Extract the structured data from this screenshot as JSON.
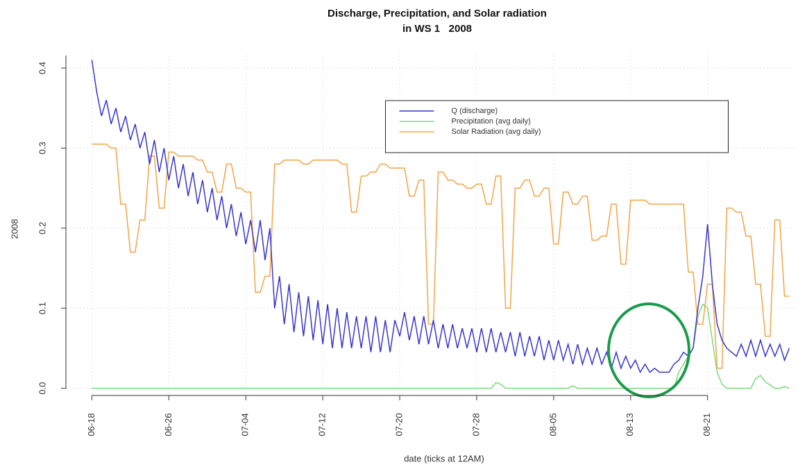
{
  "chart_data": {
    "type": "line",
    "title": "Discharge, Precipitation, and Solar radiation",
    "subtitle": "in WS 1   2008",
    "y_label": "2008",
    "x_label": "date (ticks at 12AM)",
    "grid": true,
    "legend_position": "top",
    "xlim": [
      -2.7,
      73.4
    ],
    "ylim": [
      -0.009,
      0.42
    ],
    "xticks": [
      {
        "value": 0,
        "label": "06-18"
      },
      {
        "value": 8,
        "label": "06-26"
      },
      {
        "value": 16,
        "label": "07-04"
      },
      {
        "value": 24,
        "label": "07-12"
      },
      {
        "value": 32,
        "label": "07-20"
      },
      {
        "value": 40,
        "label": "07-28"
      },
      {
        "value": 48,
        "label": "08-05"
      },
      {
        "value": 56,
        "label": "08-13"
      },
      {
        "value": 64,
        "label": "08-21"
      }
    ],
    "yticks": [
      {
        "value": 0,
        "label": "0.0"
      },
      0.1,
      0.2,
      0.3,
      0.4
    ],
    "x": [
      0,
      0.5,
      1,
      1.5,
      2,
      2.5,
      3,
      3.5,
      4,
      4.5,
      5,
      5.5,
      6,
      6.5,
      7,
      7.5,
      8,
      8.5,
      9,
      9.5,
      10,
      10.5,
      11,
      11.5,
      12,
      12.5,
      13,
      13.5,
      14,
      14.5,
      15,
      15.5,
      16,
      16.5,
      17,
      17.5,
      18,
      18.5,
      19,
      19.5,
      20,
      20.5,
      21,
      21.5,
      22,
      22.5,
      23,
      23.5,
      24,
      24.5,
      25,
      25.5,
      26,
      26.5,
      27,
      27.5,
      28,
      28.5,
      29,
      29.5,
      30,
      30.5,
      31,
      31.5,
      32,
      32.5,
      33,
      33.5,
      34,
      34.5,
      35,
      35.5,
      36,
      36.5,
      37,
      37.5,
      38,
      38.5,
      39,
      39.5,
      40,
      40.5,
      41,
      41.5,
      42,
      42.5,
      43,
      43.5,
      44,
      44.5,
      45,
      45.5,
      46,
      46.5,
      47,
      47.5,
      48,
      48.5,
      49,
      49.5,
      50,
      50.5,
      51,
      51.5,
      52,
      52.5,
      53,
      53.5,
      54,
      54.5,
      55,
      55.5,
      56,
      56.5,
      57,
      57.5,
      58,
      58.5,
      59,
      59.5,
      60,
      60.5,
      61,
      61.5,
      62,
      62.5,
      63,
      63.5,
      64,
      64.5,
      65,
      65.5,
      66,
      66.5,
      67,
      67.5,
      68,
      68.5,
      69,
      69.5,
      70,
      70.5,
      71,
      71.5,
      72,
      72.5
    ],
    "series": [
      {
        "name": "Q (discharge)",
        "color": "#3535cc",
        "values": [
          0.41,
          0.37,
          0.34,
          0.36,
          0.33,
          0.35,
          0.32,
          0.34,
          0.31,
          0.33,
          0.3,
          0.32,
          0.28,
          0.31,
          0.27,
          0.3,
          0.26,
          0.29,
          0.25,
          0.28,
          0.24,
          0.27,
          0.23,
          0.26,
          0.22,
          0.25,
          0.21,
          0.24,
          0.2,
          0.23,
          0.19,
          0.22,
          0.18,
          0.21,
          0.17,
          0.21,
          0.16,
          0.2,
          0.1,
          0.14,
          0.08,
          0.13,
          0.07,
          0.12,
          0.065,
          0.115,
          0.06,
          0.11,
          0.055,
          0.105,
          0.05,
          0.1,
          0.05,
          0.095,
          0.05,
          0.09,
          0.05,
          0.09,
          0.045,
          0.09,
          0.045,
          0.085,
          0.045,
          0.085,
          0.065,
          0.095,
          0.06,
          0.09,
          0.055,
          0.09,
          0.055,
          0.085,
          0.05,
          0.08,
          0.05,
          0.08,
          0.05,
          0.075,
          0.05,
          0.075,
          0.045,
          0.075,
          0.045,
          0.075,
          0.045,
          0.07,
          0.045,
          0.07,
          0.04,
          0.07,
          0.04,
          0.065,
          0.04,
          0.065,
          0.035,
          0.06,
          0.035,
          0.06,
          0.035,
          0.055,
          0.03,
          0.055,
          0.03,
          0.05,
          0.03,
          0.05,
          0.03,
          0.045,
          0.025,
          0.045,
          0.025,
          0.04,
          0.025,
          0.035,
          0.02,
          0.03,
          0.02,
          0.025,
          0.02,
          0.02,
          0.02,
          0.03,
          0.035,
          0.045,
          0.04,
          0.05,
          0.1,
          0.14,
          0.205,
          0.13,
          0.08,
          0.06,
          0.05,
          0.045,
          0.04,
          0.055,
          0.04,
          0.06,
          0.04,
          0.06,
          0.04,
          0.055,
          0.04,
          0.055,
          0.035,
          0.05
        ]
      },
      {
        "name": "Precipitation (avg daily)",
        "color": "#77dd77",
        "values": [
          0,
          0,
          0,
          0,
          0,
          0,
          0,
          0,
          0,
          0,
          0,
          0,
          0,
          0,
          0,
          0,
          0,
          0,
          0,
          0,
          0,
          0,
          0,
          0,
          0,
          0,
          0,
          0,
          0,
          0,
          0,
          0,
          0,
          0,
          0,
          0,
          0,
          0,
          0,
          0,
          0,
          0,
          0,
          0,
          0,
          0,
          0,
          0,
          0,
          0,
          0,
          0,
          0,
          0,
          0,
          0,
          0,
          0,
          0,
          0,
          0,
          0,
          0,
          0,
          0,
          0,
          0,
          0,
          0,
          0,
          0,
          0,
          0,
          0,
          0,
          0,
          0,
          0,
          0,
          0,
          0,
          0,
          0,
          0,
          0.007,
          0.005,
          0,
          0,
          0,
          0,
          0,
          0,
          0,
          0,
          0,
          0,
          0,
          0,
          0,
          0,
          0.003,
          0,
          0,
          0,
          0,
          0,
          0,
          0,
          0,
          0,
          0,
          0,
          0,
          0,
          0,
          0,
          0,
          0,
          0,
          0,
          0,
          0,
          0.02,
          0.03,
          0.04,
          0.05,
          0.09,
          0.105,
          0.1,
          0.06,
          0.02,
          0.005,
          0,
          0,
          0,
          0,
          0,
          0,
          0.012,
          0.016,
          0.008,
          0.004,
          0,
          0,
          0.002,
          0
        ]
      },
      {
        "name": "Solar Radiation (avg daily)",
        "color": "#f2a445",
        "values": [
          0.305,
          0.305,
          0.305,
          0.305,
          0.3,
          0.3,
          0.23,
          0.23,
          0.17,
          0.17,
          0.21,
          0.21,
          0.29,
          0.29,
          0.225,
          0.225,
          0.295,
          0.295,
          0.29,
          0.29,
          0.29,
          0.29,
          0.285,
          0.285,
          0.27,
          0.27,
          0.245,
          0.245,
          0.28,
          0.28,
          0.25,
          0.25,
          0.245,
          0.245,
          0.12,
          0.12,
          0.14,
          0.14,
          0.28,
          0.28,
          0.285,
          0.285,
          0.285,
          0.285,
          0.28,
          0.28,
          0.285,
          0.285,
          0.285,
          0.285,
          0.285,
          0.285,
          0.28,
          0.28,
          0.22,
          0.22,
          0.265,
          0.265,
          0.27,
          0.27,
          0.28,
          0.28,
          0.275,
          0.275,
          0.275,
          0.275,
          0.24,
          0.24,
          0.26,
          0.26,
          0.08,
          0.08,
          0.27,
          0.27,
          0.26,
          0.26,
          0.255,
          0.255,
          0.25,
          0.25,
          0.255,
          0.255,
          0.23,
          0.23,
          0.265,
          0.265,
          0.1,
          0.1,
          0.25,
          0.25,
          0.26,
          0.26,
          0.24,
          0.24,
          0.25,
          0.25,
          0.18,
          0.18,
          0.245,
          0.245,
          0.23,
          0.23,
          0.24,
          0.24,
          0.185,
          0.185,
          0.19,
          0.19,
          0.23,
          0.23,
          0.155,
          0.155,
          0.235,
          0.235,
          0.235,
          0.235,
          0.23,
          0.23,
          0.23,
          0.23,
          0.23,
          0.23,
          0.23,
          0.23,
          0.145,
          0.145,
          0.08,
          0.08,
          0.13,
          0.13,
          0.025,
          0.025,
          0.225,
          0.225,
          0.22,
          0.22,
          0.19,
          0.19,
          0.13,
          0.13,
          0.065,
          0.065,
          0.21,
          0.21,
          0.115,
          0.115
        ]
      }
    ]
  }
}
